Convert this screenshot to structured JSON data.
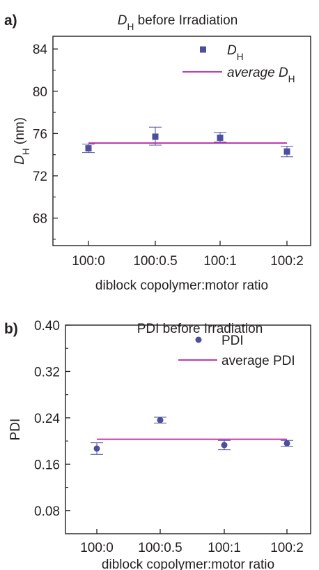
{
  "chart_data": [
    {
      "type": "scatter",
      "panel": "a)",
      "title": {
        "main": "D",
        "sub": "H",
        "rest": " before Irradiation"
      },
      "xlabel": "diblock copolymer:motor ratio",
      "ylabel": {
        "main": "D",
        "sub": "H",
        "rest": " (nm)"
      },
      "categories": [
        "100:0",
        "100:0.5",
        "100:1",
        "100:2"
      ],
      "ylim": [
        65.4,
        85.2
      ],
      "yticks": [
        68,
        72,
        76,
        80,
        84
      ],
      "ytick_labels": [
        "68",
        "72",
        "76",
        "80",
        "84"
      ],
      "series": [
        {
          "name": "D_H",
          "legend": {
            "main": "D",
            "sub": "H",
            "rest": ""
          },
          "marker": "square",
          "color": "#4e4f9c",
          "values": [
            74.6,
            75.7,
            75.6,
            74.3
          ],
          "error_low": [
            74.2,
            74.9,
            75.2,
            73.8
          ],
          "error_high": [
            75.0,
            76.6,
            76.1,
            74.8
          ]
        }
      ],
      "reference_line": {
        "name": "average D_H",
        "legend": {
          "main": "average D",
          "sub": "H",
          "rest": ""
        },
        "color": "#c03bae",
        "value": 75.1
      },
      "grid": false,
      "legend_position": "top-right"
    },
    {
      "type": "scatter",
      "panel": "b)",
      "title": {
        "main": "PDI before Irradiation",
        "sub": "",
        "rest": ""
      },
      "xlabel": "diblock copolymer:motor ratio",
      "ylabel": {
        "main": "PDI",
        "sub": "",
        "rest": ""
      },
      "categories": [
        "100:0",
        "100:0.5",
        "100:1",
        "100:2"
      ],
      "ylim": [
        0.04,
        0.4
      ],
      "yticks": [
        0.08,
        0.16,
        0.24,
        0.32,
        0.4
      ],
      "ytick_labels": [
        "0.08",
        "0.16",
        "0.24",
        "0.32",
        "0.40"
      ],
      "series": [
        {
          "name": "PDI",
          "legend": {
            "main": "PDI",
            "sub": "",
            "rest": ""
          },
          "marker": "circle",
          "color": "#4e4f9c",
          "values": [
            0.187,
            0.236,
            0.193,
            0.196
          ],
          "error_low": [
            0.177,
            0.231,
            0.185,
            0.191
          ],
          "error_high": [
            0.197,
            0.241,
            0.201,
            0.201
          ]
        }
      ],
      "reference_line": {
        "name": "average PDI",
        "legend": {
          "main": "average PDI",
          "sub": "",
          "rest": ""
        },
        "color": "#c03bae",
        "value": 0.203
      },
      "grid": false,
      "legend_position": "top-right"
    }
  ]
}
